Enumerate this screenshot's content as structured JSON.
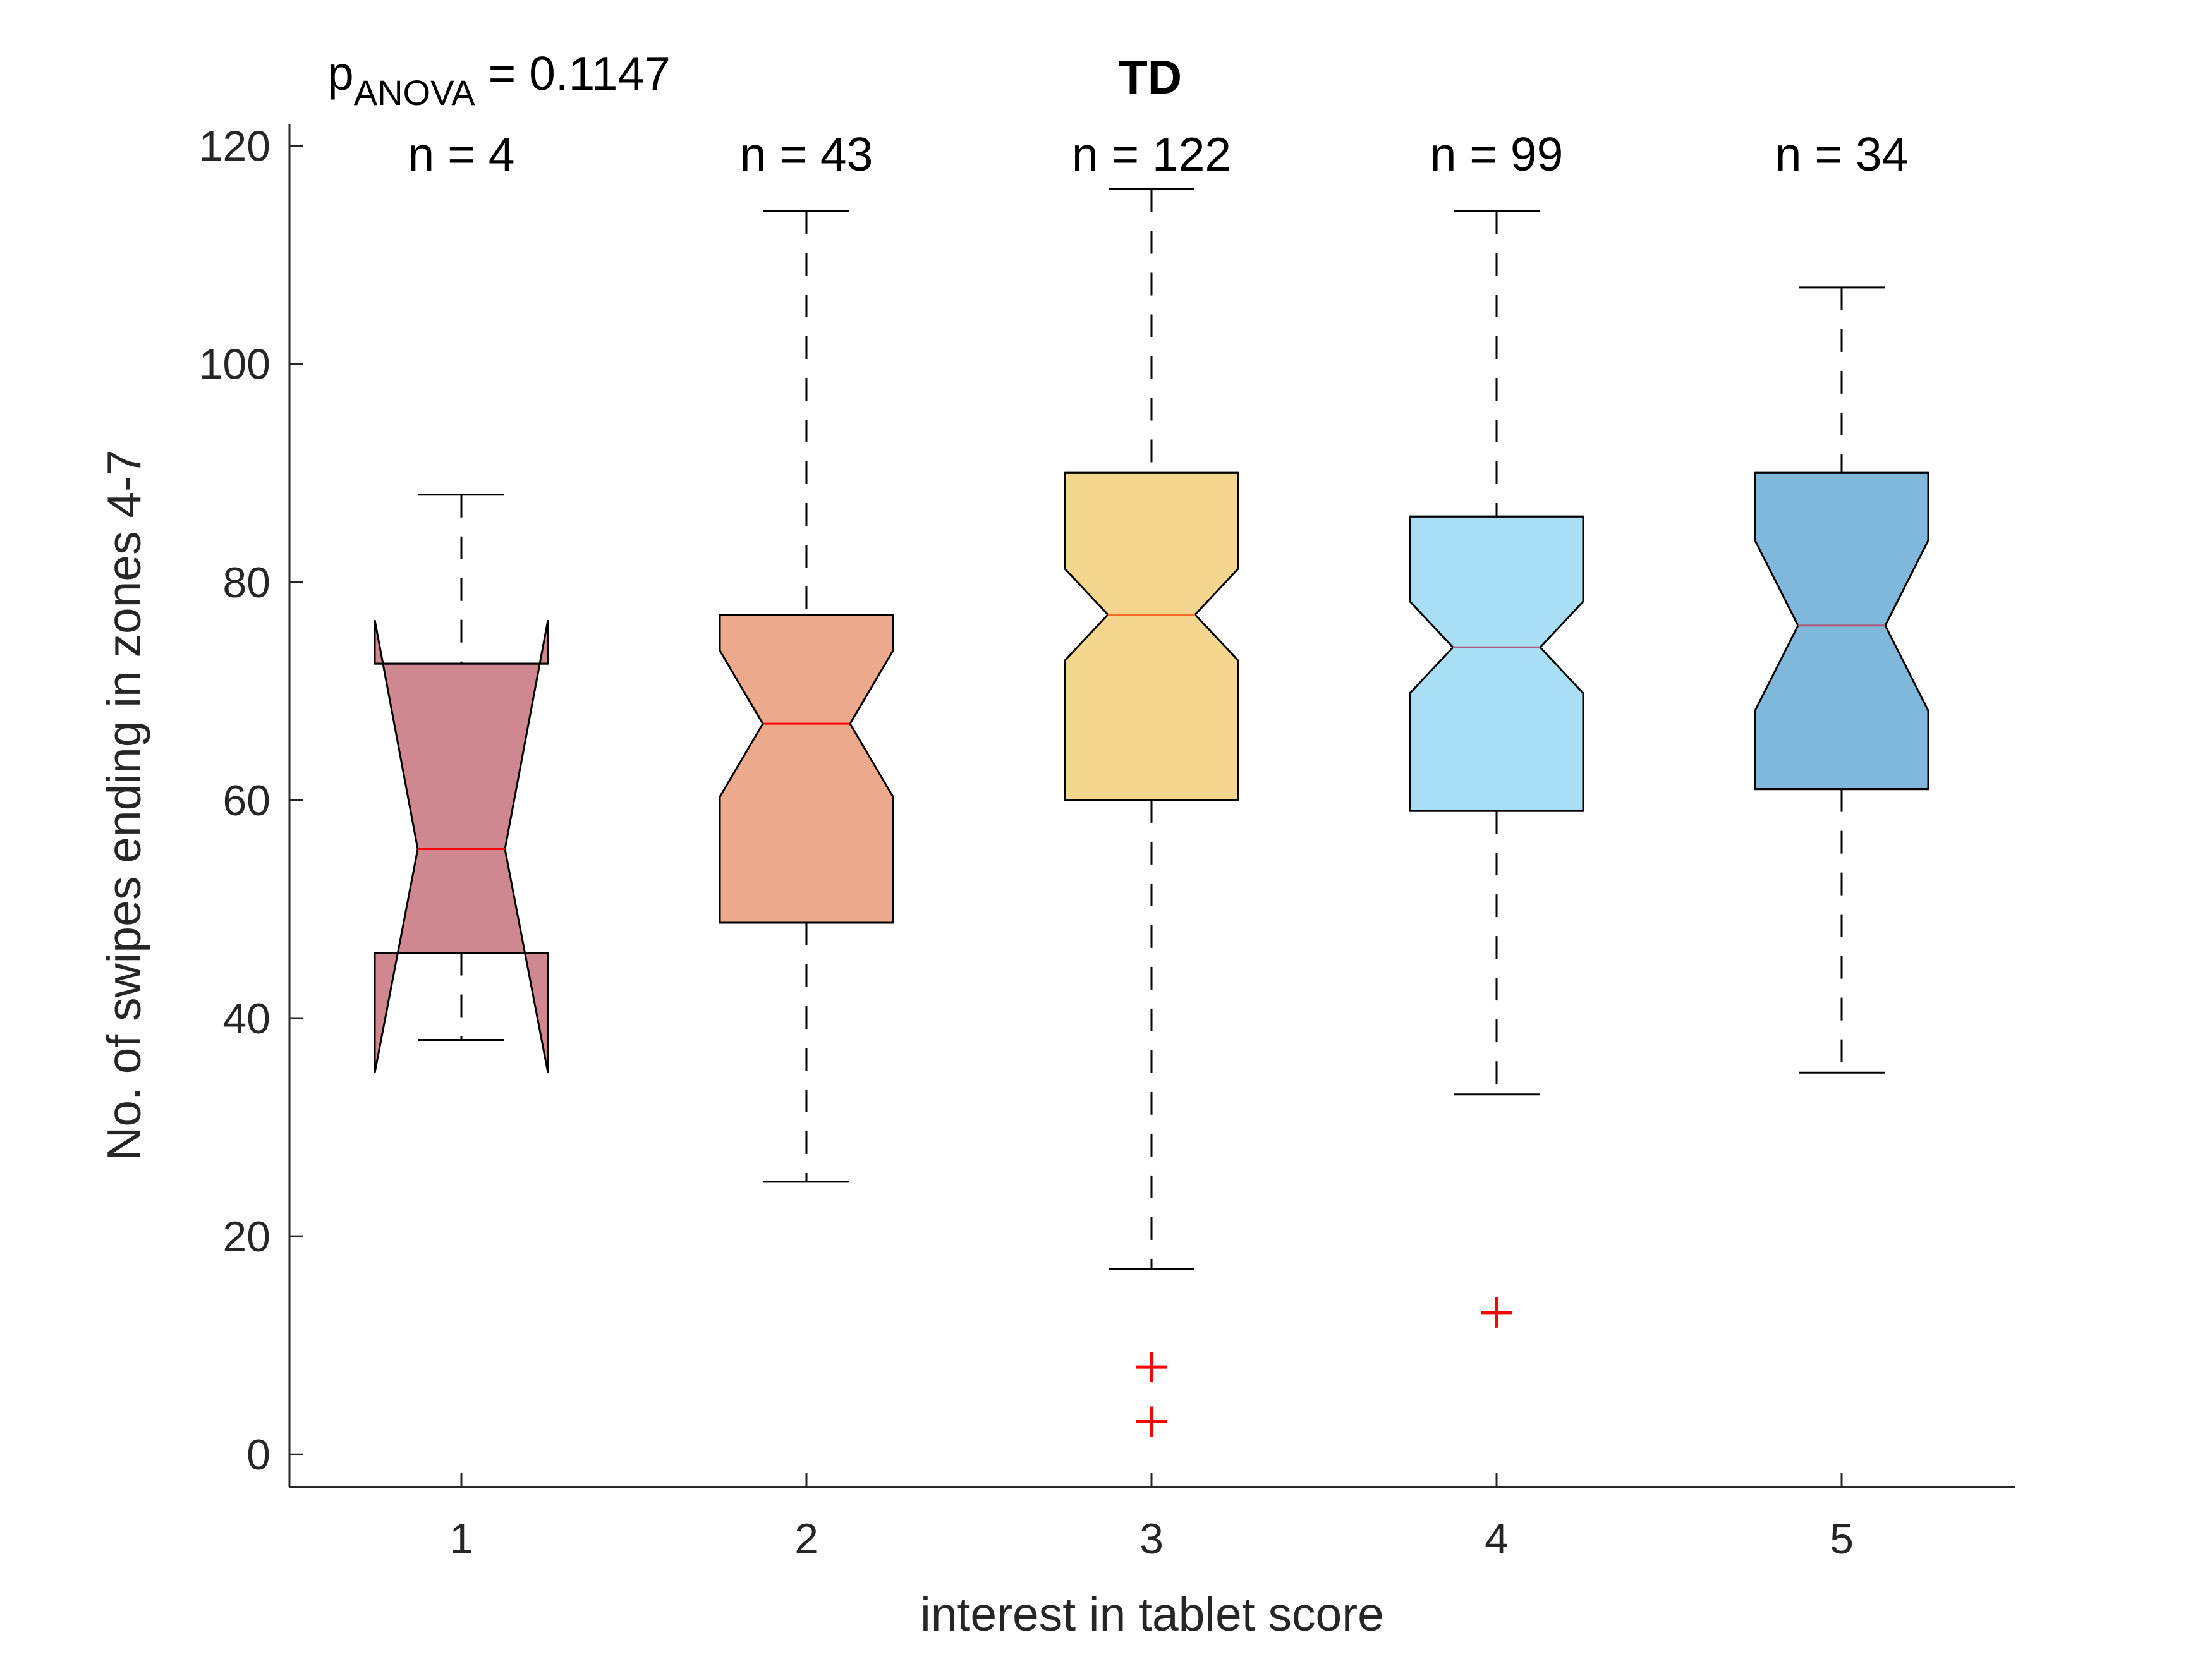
{
  "chart_data": {
    "type": "box",
    "title": "TD",
    "xlabel": "interest in tablet score",
    "ylabel": "No. of swipes ending in zones 4-7",
    "ylim": [
      -3,
      122
    ],
    "yticks": [
      0,
      20,
      40,
      60,
      80,
      100,
      120
    ],
    "categories": [
      "1",
      "2",
      "3",
      "4",
      "5"
    ],
    "anova": {
      "prefix": "p",
      "subscript": "ANOVA",
      "text": " = 0.1147"
    },
    "boxes": [
      {
        "category": "1",
        "n_label": "n = 4",
        "whisker_low": 38,
        "q1": 46,
        "median": 55.5,
        "q3": 72.5,
        "whisker_high": 88,
        "notch_low": 35,
        "notch_high": 76.5,
        "color": "#d08890",
        "median_color": "#ff0000",
        "outliers": []
      },
      {
        "category": "2",
        "n_label": "n = 43",
        "whisker_low": 25,
        "q1": 48.75,
        "median": 67,
        "q3": 77,
        "whisker_high": 114,
        "notch_low": 60.3,
        "notch_high": 73.7,
        "color": "#eca98c",
        "median_color": "#ff0000",
        "outliers": []
      },
      {
        "category": "3",
        "n_label": "n = 122",
        "whisker_low": 17,
        "q1": 60,
        "median": 77,
        "q3": 90,
        "whisker_high": 116,
        "notch_low": 72.8,
        "notch_high": 81.2,
        "color": "#f4d68e",
        "median_color": "#ff6a2a",
        "outliers": [
          8,
          3
        ]
      },
      {
        "category": "4",
        "n_label": "n = 99",
        "whisker_low": 33,
        "q1": 59,
        "median": 74,
        "q3": 86,
        "whisker_high": 114,
        "notch_low": 69.8,
        "notch_high": 78.2,
        "color": "#a9dff4",
        "median_color": "#b05a7a",
        "outliers": [
          13
        ]
      },
      {
        "category": "5",
        "n_label": "n = 34",
        "whisker_low": 35,
        "q1": 61,
        "median": 76,
        "q3": 90,
        "whisker_high": 107,
        "notch_low": 68.2,
        "notch_high": 83.8,
        "color": "#80b8dc",
        "median_color": "#b05a7a",
        "outliers": []
      }
    ]
  }
}
